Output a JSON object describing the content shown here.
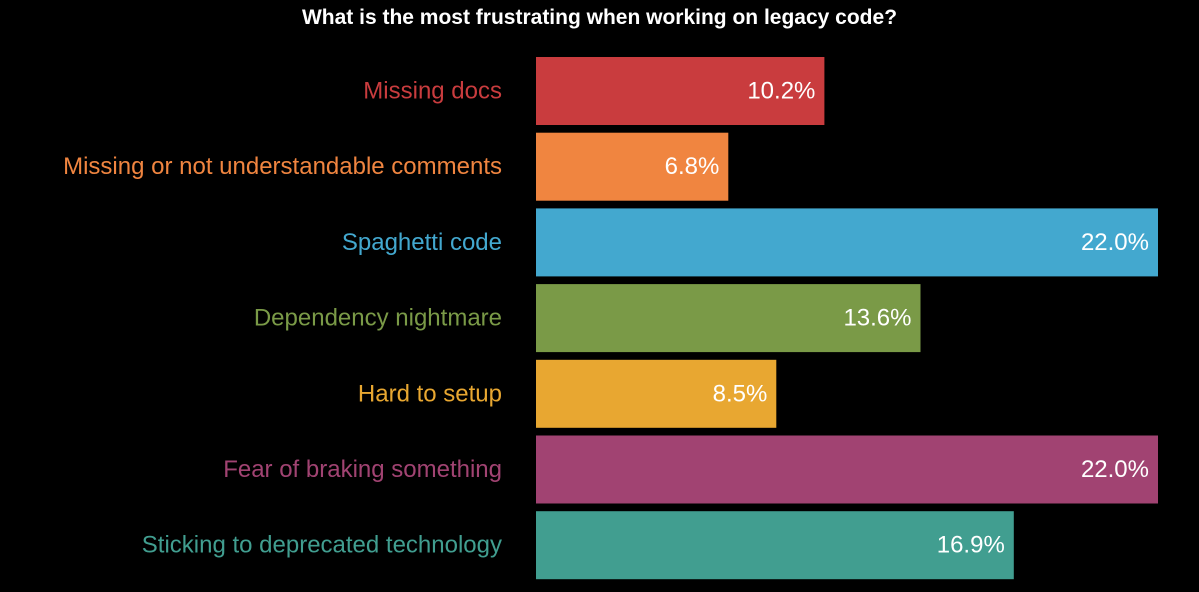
{
  "chart_data": {
    "type": "bar",
    "orientation": "horizontal",
    "title": "What is the most frustrating when working on legacy code?",
    "xlabel": "",
    "ylabel": "",
    "xlim": [
      0,
      22.0
    ],
    "grid": false,
    "legend": "none",
    "value_suffix": "%",
    "categories": [
      "Missing docs",
      "Missing or not understandable comments",
      "Spaghetti code",
      "Dependency nightmare",
      "Hard to setup",
      "Fear of braking something",
      "Sticking to deprecated technology"
    ],
    "values": [
      10.2,
      6.8,
      22.0,
      13.6,
      8.5,
      22.0,
      16.9
    ],
    "colors": [
      "#c93c3e",
      "#f08540",
      "#43a8cf",
      "#7a9a47",
      "#e8a731",
      "#a14372",
      "#419e90"
    ],
    "label_color": "#ffffff",
    "background": "#000000"
  }
}
